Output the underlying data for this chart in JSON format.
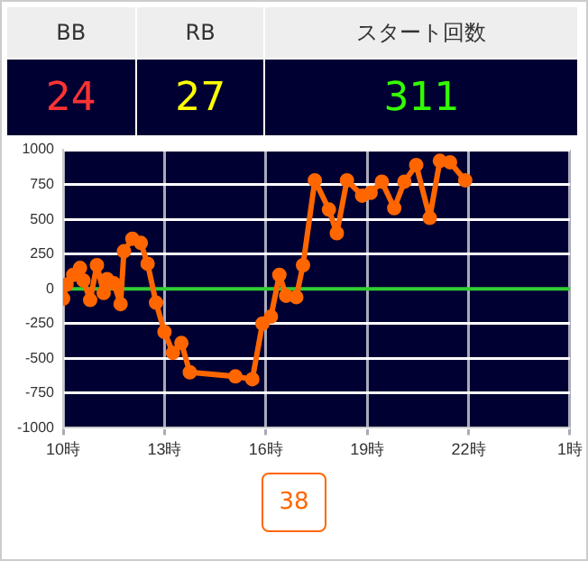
{
  "chart_data": [
    {
      "type": "other",
      "categories": [
        "BB",
        "RB",
        "スタート回数"
      ],
      "annotations": [
        "24",
        "27",
        "311"
      ]
    },
    {
      "type": "line",
      "x": [
        "--01-01T10:00",
        "--01-01T10:06",
        "--01-01T10:18",
        "--01-01T10:30",
        "--01-01T10:36",
        "--01-01T10:48",
        "--01-01T11:00",
        "--01-01T11:12",
        "--01-01T11:18",
        "--01-01T11:30",
        "--01-01T11:42",
        "--01-01T11:48",
        "--01-01T12:03",
        "--01-01T12:18",
        "--01-01T12:30",
        "--01-01T12:45",
        "--01-01T13:00",
        "--01-01T13:15",
        "--01-01T13:30",
        "--01-01T13:45",
        "--01-01T15:06",
        "--01-01T15:36",
        "--01-01T15:54",
        "--01-01T16:09",
        "--01-01T16:24",
        "--01-01T16:36",
        "--01-01T16:54",
        "--01-01T17:06",
        "--01-01T17:27",
        "--01-01T17:52",
        "--01-01T18:06",
        "--01-01T18:24",
        "--01-01T18:51",
        "--01-01T19:06",
        "--01-01T19:26",
        "--01-01T19:48",
        "--01-01T20:06",
        "--01-01T20:27",
        "--01-01T20:51",
        "--01-01T21:09",
        "--01-01T21:27",
        "--01-01T21:54"
      ],
      "series": [
        {
          "color": "#ff6600",
          "values": [
            -70,
            30,
            100,
            150,
            60,
            -80,
            170,
            -30,
            70,
            40,
            -110,
            270,
            360,
            330,
            180,
            -100,
            -310,
            -460,
            -390,
            -600,
            -630,
            -650,
            -250,
            -200,
            100,
            -50,
            -60,
            170,
            780,
            570,
            400,
            780,
            670,
            690,
            770,
            580,
            770,
            890,
            510,
            920,
            910,
            780
          ]
        }
      ],
      "xlim": [
        "--01-01T10:00",
        "--01-02T01:00"
      ],
      "xticks": [
        {
          "value": "--01-01T10:00",
          "label": "10時"
        },
        {
          "value": "--01-01T13:00",
          "label": "13時"
        },
        {
          "value": "--01-01T16:00",
          "label": "16時"
        },
        {
          "value": "--01-01T19:00",
          "label": "19時"
        },
        {
          "value": "--01-01T22:00",
          "label": "22時"
        },
        {
          "value": "--01-02T01:00",
          "label": "1時"
        }
      ],
      "ylim": [
        -1000,
        1000
      ],
      "yticks": [
        -1000,
        -750,
        -500,
        -250,
        0,
        250,
        500,
        750,
        1000
      ],
      "grid": true,
      "legend": false,
      "marker": "circle",
      "line_style": "solid",
      "ref_lines": [
        {
          "axis": "y",
          "value": 0,
          "color": "#33cc33"
        }
      ],
      "annotations": [
        "38"
      ]
    }
  ]
}
